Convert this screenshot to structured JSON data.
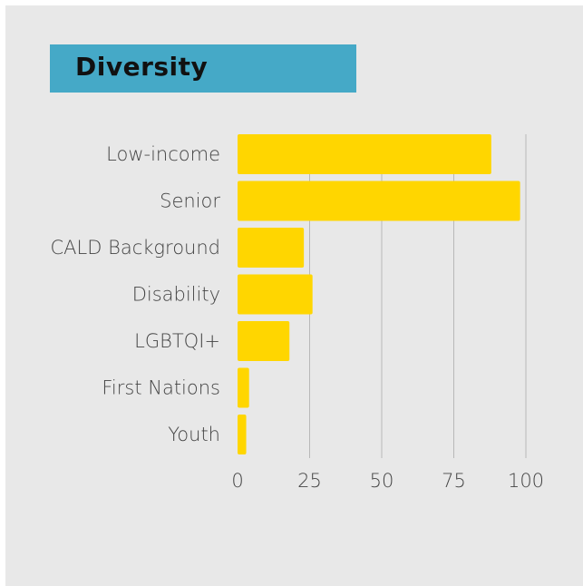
{
  "title": "Diversity",
  "colors": {
    "background": "#e8e8e8",
    "banner": "#45a9c7",
    "bar": "#ffd600",
    "gridline": "#b8b8b8",
    "text": "#444444"
  },
  "chart_data": {
    "type": "bar",
    "orientation": "horizontal",
    "title": "Diversity",
    "categories": [
      "Low-income",
      "Senior",
      "CALD Background",
      "Disability",
      "LGBTQI+",
      "First Nations",
      "Youth"
    ],
    "values": [
      88,
      98,
      23,
      26,
      18,
      4,
      3
    ],
    "x_ticks": [
      0,
      25,
      50,
      75,
      100
    ],
    "xlim": [
      0,
      100
    ],
    "xlabel": "",
    "ylabel": "",
    "grid": "vertical",
    "legend": "none"
  }
}
